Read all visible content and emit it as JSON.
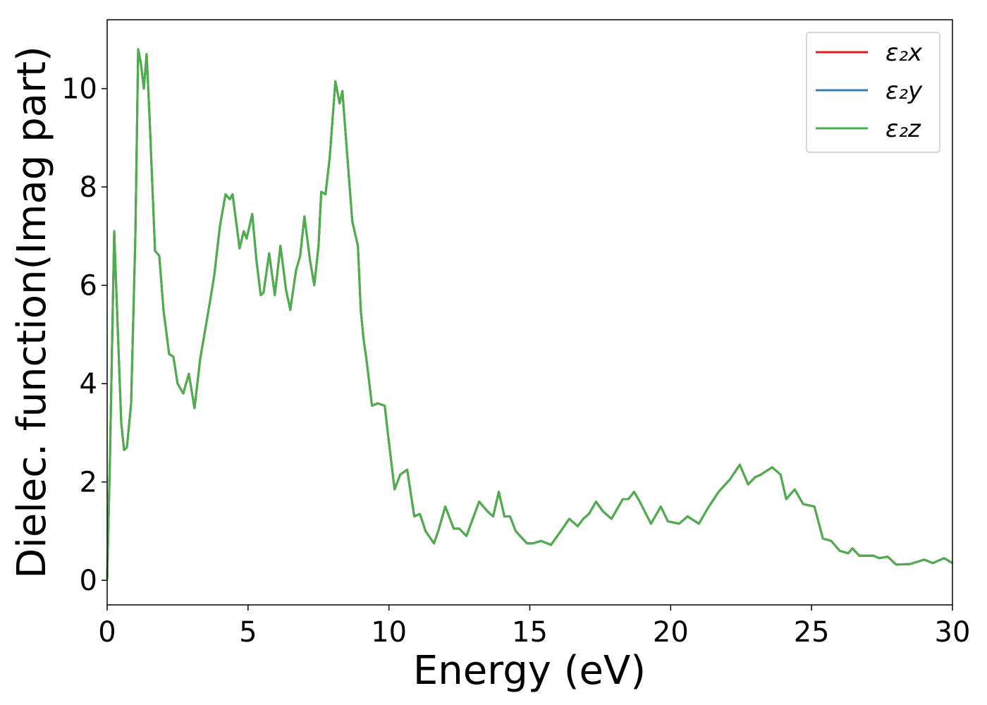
{
  "chart_data": {
    "type": "line",
    "xlabel": "Energy (eV)",
    "ylabel": "Dielec. function(Imag part)",
    "xlim": [
      0,
      30
    ],
    "ylim": [
      -0.5,
      11.4
    ],
    "xticks": [
      0,
      5,
      10,
      15,
      20,
      25,
      30
    ],
    "yticks": [
      0,
      2,
      4,
      6,
      8,
      10
    ],
    "legend": "upper right",
    "x": [
      0,
      0.1,
      0.25,
      0.35,
      0.5,
      0.6,
      0.7,
      0.85,
      1.0,
      1.1,
      1.2,
      1.3,
      1.4,
      1.5,
      1.7,
      1.85,
      2.0,
      2.2,
      2.35,
      2.5,
      2.7,
      2.9,
      3.1,
      3.3,
      3.6,
      3.8,
      4.0,
      4.2,
      4.35,
      4.45,
      4.6,
      4.7,
      4.85,
      4.95,
      5.15,
      5.3,
      5.45,
      5.55,
      5.75,
      5.95,
      6.15,
      6.35,
      6.5,
      6.7,
      6.85,
      7.0,
      7.2,
      7.35,
      7.5,
      7.6,
      7.75,
      7.9,
      8.1,
      8.25,
      8.35,
      8.5,
      8.7,
      8.9,
      9.0,
      9.1,
      9.2,
      9.4,
      9.6,
      9.85,
      10.0,
      10.2,
      10.4,
      10.65,
      10.9,
      11.1,
      11.3,
      11.6,
      11.75,
      12.0,
      12.3,
      12.5,
      12.75,
      13.2,
      13.5,
      13.7,
      13.9,
      14.1,
      14.3,
      14.5,
      14.9,
      15.1,
      15.4,
      15.75,
      16.1,
      16.4,
      16.7,
      16.9,
      17.1,
      17.35,
      17.6,
      17.9,
      18.3,
      18.5,
      18.7,
      18.9,
      19.3,
      19.65,
      19.9,
      20.3,
      20.6,
      21.0,
      21.3,
      21.7,
      22.1,
      22.45,
      22.75,
      23.0,
      23.2,
      23.6,
      23.9,
      24.1,
      24.4,
      24.7,
      25.1,
      25.4,
      25.7,
      26.0,
      26.3,
      26.45,
      26.7,
      27.2,
      27.4,
      27.7,
      28.0,
      28.5,
      29.0,
      29.3,
      29.7,
      30.0
    ],
    "series": [
      {
        "name": "ε₂x",
        "color": "#e41a1c",
        "values": [
          0,
          2.5,
          7.1,
          5.5,
          3.2,
          2.65,
          2.7,
          3.6,
          7.0,
          10.8,
          10.5,
          10.0,
          10.7,
          9.5,
          6.7,
          6.6,
          5.5,
          4.6,
          4.55,
          4.0,
          3.8,
          4.2,
          3.5,
          4.5,
          5.5,
          6.2,
          7.2,
          7.85,
          7.75,
          7.85,
          7.2,
          6.75,
          7.1,
          6.95,
          7.45,
          6.5,
          5.8,
          5.85,
          6.65,
          5.8,
          6.8,
          5.9,
          5.5,
          6.3,
          6.6,
          7.4,
          6.5,
          6.0,
          6.8,
          7.9,
          7.85,
          8.6,
          10.15,
          9.7,
          9.95,
          8.8,
          7.3,
          6.8,
          5.5,
          4.9,
          4.5,
          3.55,
          3.6,
          3.55,
          2.8,
          1.85,
          2.15,
          2.25,
          1.3,
          1.35,
          1.0,
          0.75,
          1.0,
          1.5,
          1.05,
          1.05,
          0.9,
          1.6,
          1.4,
          1.3,
          1.8,
          1.3,
          1.3,
          1.0,
          0.75,
          0.75,
          0.8,
          0.72,
          1.0,
          1.25,
          1.1,
          1.25,
          1.35,
          1.6,
          1.4,
          1.25,
          1.65,
          1.65,
          1.8,
          1.6,
          1.15,
          1.5,
          1.2,
          1.15,
          1.3,
          1.15,
          1.45,
          1.8,
          2.05,
          2.35,
          1.95,
          2.1,
          2.15,
          2.3,
          2.15,
          1.65,
          1.85,
          1.55,
          1.5,
          0.85,
          0.8,
          0.6,
          0.55,
          0.65,
          0.5,
          0.5,
          0.45,
          0.48,
          0.32,
          0.33,
          0.42,
          0.35,
          0.45,
          0.35
        ]
      },
      {
        "name": "ε₂y",
        "color": "#377eb8",
        "values": [
          0,
          2.5,
          7.1,
          5.5,
          3.2,
          2.65,
          2.7,
          3.6,
          7.0,
          10.8,
          10.5,
          10.0,
          10.7,
          9.5,
          6.7,
          6.6,
          5.5,
          4.6,
          4.55,
          4.0,
          3.8,
          4.2,
          3.5,
          4.5,
          5.5,
          6.2,
          7.2,
          7.85,
          7.75,
          7.85,
          7.2,
          6.75,
          7.1,
          6.95,
          7.45,
          6.5,
          5.8,
          5.85,
          6.65,
          5.8,
          6.8,
          5.9,
          5.5,
          6.3,
          6.6,
          7.4,
          6.5,
          6.0,
          6.8,
          7.9,
          7.85,
          8.6,
          10.15,
          9.7,
          9.95,
          8.8,
          7.3,
          6.8,
          5.5,
          4.9,
          4.5,
          3.55,
          3.6,
          3.55,
          2.8,
          1.85,
          2.15,
          2.25,
          1.3,
          1.35,
          1.0,
          0.75,
          1.0,
          1.5,
          1.05,
          1.05,
          0.9,
          1.6,
          1.4,
          1.3,
          1.8,
          1.3,
          1.3,
          1.0,
          0.75,
          0.75,
          0.8,
          0.72,
          1.0,
          1.25,
          1.1,
          1.25,
          1.35,
          1.6,
          1.4,
          1.25,
          1.65,
          1.65,
          1.8,
          1.6,
          1.15,
          1.5,
          1.2,
          1.15,
          1.3,
          1.15,
          1.45,
          1.8,
          2.05,
          2.35,
          1.95,
          2.1,
          2.15,
          2.3,
          2.15,
          1.65,
          1.85,
          1.55,
          1.5,
          0.85,
          0.8,
          0.6,
          0.55,
          0.65,
          0.5,
          0.5,
          0.45,
          0.48,
          0.32,
          0.33,
          0.42,
          0.35,
          0.45,
          0.35
        ]
      },
      {
        "name": "ε₂z",
        "color": "#4daf4a",
        "values": [
          0,
          2.5,
          7.1,
          5.5,
          3.2,
          2.65,
          2.7,
          3.6,
          7.0,
          10.8,
          10.5,
          10.0,
          10.7,
          9.5,
          6.7,
          6.6,
          5.5,
          4.6,
          4.55,
          4.0,
          3.8,
          4.2,
          3.5,
          4.5,
          5.5,
          6.2,
          7.2,
          7.85,
          7.75,
          7.85,
          7.2,
          6.75,
          7.1,
          6.95,
          7.45,
          6.5,
          5.8,
          5.85,
          6.65,
          5.8,
          6.8,
          5.9,
          5.5,
          6.3,
          6.6,
          7.4,
          6.5,
          6.0,
          6.8,
          7.9,
          7.85,
          8.6,
          10.15,
          9.7,
          9.95,
          8.8,
          7.3,
          6.8,
          5.5,
          4.9,
          4.5,
          3.55,
          3.6,
          3.55,
          2.8,
          1.85,
          2.15,
          2.25,
          1.3,
          1.35,
          1.0,
          0.75,
          1.0,
          1.5,
          1.05,
          1.05,
          0.9,
          1.6,
          1.4,
          1.3,
          1.8,
          1.3,
          1.3,
          1.0,
          0.75,
          0.75,
          0.8,
          0.72,
          1.0,
          1.25,
          1.1,
          1.25,
          1.35,
          1.6,
          1.4,
          1.25,
          1.65,
          1.65,
          1.8,
          1.6,
          1.15,
          1.5,
          1.2,
          1.15,
          1.3,
          1.15,
          1.45,
          1.8,
          2.05,
          2.35,
          1.95,
          2.1,
          2.15,
          2.3,
          2.15,
          1.65,
          1.85,
          1.55,
          1.5,
          0.85,
          0.8,
          0.6,
          0.55,
          0.65,
          0.5,
          0.5,
          0.45,
          0.48,
          0.32,
          0.33,
          0.42,
          0.35,
          0.45,
          0.35
        ]
      }
    ]
  }
}
